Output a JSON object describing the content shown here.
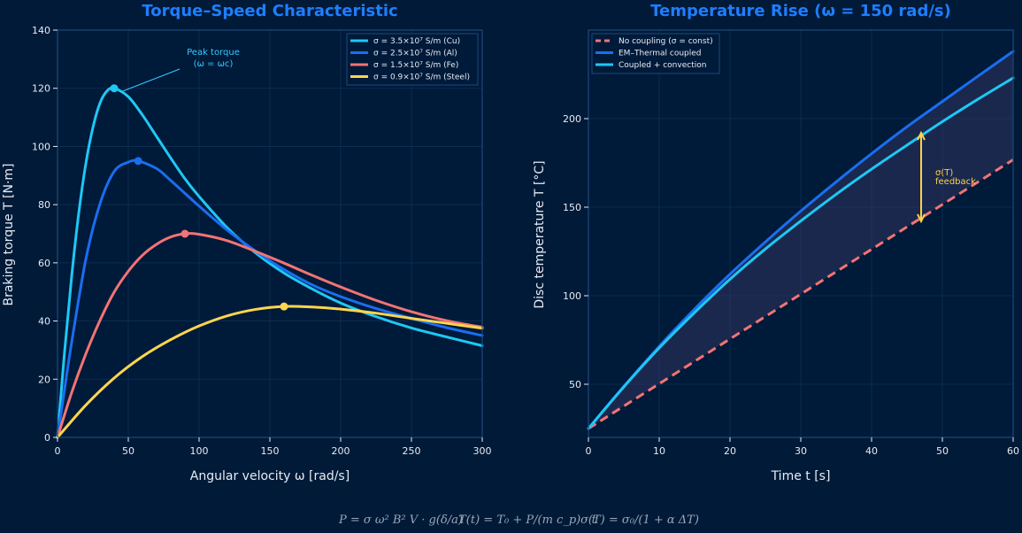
{
  "colors": {
    "background": "#001a38",
    "axes_face": "#001a3a",
    "spine": "#1a4a7a",
    "grid": "#0e3056",
    "title": "#1e7eff",
    "text": "#e6ecf4",
    "annotation_peak": "#33ccff",
    "annotation_feedback": "#ffd24a",
    "formula": "#9aa8b8"
  },
  "chart_data": [
    {
      "type": "line",
      "title": "Torque–Speed Characteristic",
      "xlabel": "Angular velocity ω [rad/s]",
      "ylabel": "Braking torque T [N·m]",
      "xlim": [
        0,
        300
      ],
      "ylim": [
        0,
        140
      ],
      "xticks": [
        0,
        50,
        100,
        150,
        200,
        250,
        300
      ],
      "yticks": [
        0,
        20,
        40,
        60,
        80,
        100,
        120,
        140
      ],
      "grid": true,
      "legend_position": "top-right",
      "series": [
        {
          "name": "σ = 3.5×10⁷ S/m (Cu)",
          "color": "#1ec8f4",
          "tmax": 120,
          "wc": 40,
          "peak": [
            40,
            120
          ],
          "x": [
            0,
            5,
            10,
            15,
            20,
            25,
            30,
            35,
            40,
            50,
            60,
            70,
            80,
            90,
            100,
            120,
            140,
            160,
            180,
            200,
            225,
            250,
            275,
            300
          ],
          "y": [
            0,
            29.5,
            55.4,
            77.1,
            94.1,
            106.5,
            114.9,
            119.1,
            120,
            117.1,
            110.8,
            103.4,
            96,
            88.9,
            82.8,
            72,
            63.4,
            56.5,
            51,
            46.2,
            41.5,
            37.6,
            34.5,
            31.5
          ]
        },
        {
          "name": "σ = 2.5×10⁷ S/m (Al)",
          "color": "#1a6ef0",
          "tmax": 95,
          "wc": 57,
          "peak": [
            57,
            95
          ],
          "x": [
            0,
            5,
            10,
            20,
            30,
            40,
            50,
            57,
            70,
            80,
            90,
            100,
            120,
            140,
            160,
            180,
            200,
            225,
            250,
            275,
            300
          ],
          "y": [
            0,
            16.6,
            32.7,
            61.2,
            80.3,
            91.4,
            94.6,
            95,
            92.4,
            88.3,
            83.9,
            79.5,
            71.2,
            64,
            57.7,
            52.4,
            48.4,
            44.3,
            40.9,
            37.7,
            35
          ]
        },
        {
          "name": "σ = 1.5×10⁷ S/m (Fe)",
          "color": "#f27474",
          "tmax": 70,
          "wc": 90,
          "peak": [
            90,
            70
          ],
          "x": [
            0,
            10,
            20,
            30,
            40,
            50,
            60,
            70,
            80,
            90,
            100,
            120,
            140,
            160,
            180,
            200,
            225,
            250,
            275,
            300
          ],
          "y": [
            0,
            15.4,
            28.7,
            40.2,
            49.9,
            57.1,
            62.6,
            66.4,
            68.9,
            70,
            69.8,
            67.6,
            63.9,
            59.9,
            55.7,
            51.7,
            47.1,
            43.2,
            40.1,
            37.9
          ]
        },
        {
          "name": "σ = 0.9×10⁷ S/m (Steel)",
          "color": "#ffd54f",
          "tmax": 45,
          "wc": 160,
          "peak": [
            160,
            45
          ],
          "x": [
            0,
            20,
            40,
            60,
            80,
            100,
            120,
            140,
            160,
            180,
            200,
            225,
            250,
            275,
            300
          ],
          "y": [
            0,
            11.1,
            20.4,
            27.8,
            33.6,
            38.3,
            41.8,
            44,
            45,
            44.8,
            44.1,
            42.7,
            40.9,
            39.2,
            37.5
          ]
        }
      ],
      "annotation": {
        "text": "Peak torque",
        "text2": "(ω = ωc)",
        "point": [
          40,
          120
        ],
        "label_at": [
          110,
          128
        ]
      }
    },
    {
      "type": "line",
      "title": "Temperature Rise (ω = 150 rad/s)",
      "xlabel": "Time t [s]",
      "ylabel": "Disc temperature T [°C]",
      "xlim": [
        0,
        60
      ],
      "ylim": [
        20,
        250
      ],
      "xticks": [
        0,
        10,
        20,
        30,
        40,
        50,
        60
      ],
      "yticks": [
        50,
        100,
        150,
        200
      ],
      "grid": true,
      "legend_position": "top-left",
      "series": [
        {
          "name": "No coupling (σ = const)",
          "color": "#f27474",
          "dashed": true,
          "x": [
            0,
            10,
            20,
            30,
            40,
            50,
            60
          ],
          "y": [
            25,
            50.3,
            75.6,
            100.9,
            126.2,
            151.5,
            176.8
          ]
        },
        {
          "name": "EM–Thermal coupled",
          "color": "#1a6ef0",
          "x": [
            0,
            5,
            10,
            15,
            20,
            25,
            30,
            35,
            40,
            45,
            50,
            55,
            60
          ],
          "y": [
            25,
            48.8,
            71.4,
            92.5,
            112.2,
            130.4,
            147.8,
            164.3,
            180.2,
            195.4,
            209.7,
            223.9,
            238
          ]
        },
        {
          "name": "Coupled + convection",
          "color": "#1ec8f4",
          "x": [
            0,
            5,
            10,
            15,
            20,
            25,
            30,
            35,
            40,
            45,
            50,
            55,
            60
          ],
          "y": [
            25,
            48.5,
            70.5,
            90.5,
            109.3,
            126.4,
            142.2,
            157.3,
            171.5,
            185,
            198.3,
            210.9,
            223
          ]
        }
      ],
      "fill_between": {
        "lower": "No coupling (σ = const)",
        "upper": "EM–Thermal coupled",
        "color": "#3a3a66"
      },
      "annotation": {
        "text": "σ(T)",
        "text2": "feedback",
        "arrow_x": 47,
        "arrow_y": [
          142,
          192
        ]
      }
    }
  ],
  "formulas": {
    "power": "P = σ ω² B² V · g(δ/a)",
    "temperature": "T(t) = T₀ + P/(m c_p) · t",
    "conductivity": "σ(T) = σ₀/(1 + α ΔT)"
  }
}
